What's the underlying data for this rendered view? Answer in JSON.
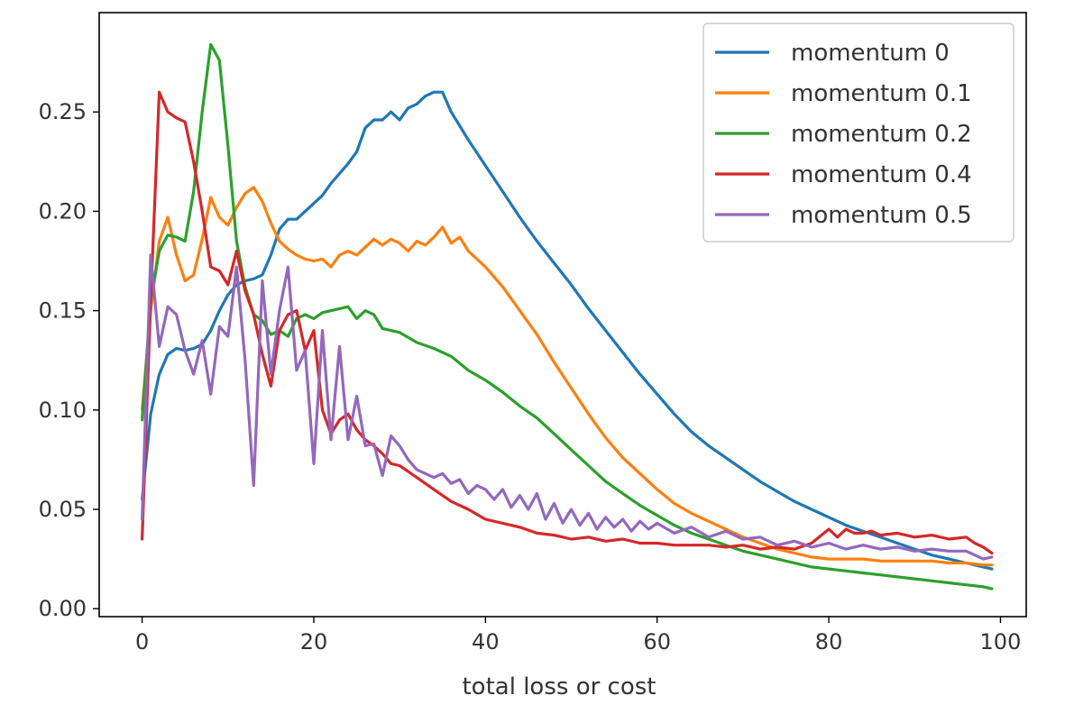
{
  "chart_data": {
    "type": "line",
    "title": "",
    "xlabel": "total loss or cost",
    "ylabel": "",
    "xlim": [
      -5,
      103
    ],
    "ylim": [
      -0.004,
      0.3
    ],
    "xticks": [
      0,
      20,
      40,
      60,
      80,
      100
    ],
    "xtick_labels": [
      "0",
      "20",
      "40",
      "60",
      "80",
      "100"
    ],
    "yticks": [
      0.0,
      0.05,
      0.1,
      0.15,
      0.2,
      0.25
    ],
    "ytick_labels": [
      "0.00",
      "0.05",
      "0.10",
      "0.15",
      "0.20",
      "0.25"
    ],
    "grid": false,
    "legend_position": "top-right",
    "series": [
      {
        "name": "momentum 0",
        "color": "#1f77b4",
        "x": [
          0,
          1,
          2,
          3,
          4,
          5,
          6,
          7,
          8,
          9,
          10,
          11,
          12,
          13,
          14,
          15,
          16,
          17,
          18,
          19,
          20,
          21,
          22,
          23,
          24,
          25,
          26,
          27,
          28,
          29,
          30,
          31,
          32,
          33,
          34,
          35,
          36,
          38,
          40,
          42,
          44,
          46,
          48,
          50,
          52,
          54,
          56,
          58,
          60,
          62,
          64,
          66,
          68,
          70,
          72,
          74,
          76,
          78,
          80,
          82,
          84,
          86,
          88,
          90,
          92,
          94,
          96,
          98,
          99
        ],
        "y": [
          0.055,
          0.098,
          0.118,
          0.128,
          0.131,
          0.13,
          0.131,
          0.133,
          0.14,
          0.15,
          0.158,
          0.163,
          0.165,
          0.166,
          0.168,
          0.178,
          0.191,
          0.196,
          0.196,
          0.2,
          0.204,
          0.208,
          0.214,
          0.219,
          0.224,
          0.23,
          0.242,
          0.246,
          0.246,
          0.25,
          0.246,
          0.252,
          0.254,
          0.258,
          0.26,
          0.26,
          0.25,
          0.236,
          0.223,
          0.21,
          0.197,
          0.185,
          0.174,
          0.163,
          0.151,
          0.14,
          0.129,
          0.118,
          0.108,
          0.098,
          0.089,
          0.082,
          0.076,
          0.07,
          0.064,
          0.059,
          0.054,
          0.05,
          0.046,
          0.042,
          0.039,
          0.036,
          0.033,
          0.03,
          0.027,
          0.025,
          0.023,
          0.021,
          0.02
        ]
      },
      {
        "name": "momentum 0.1",
        "color": "#ff7f0e",
        "x": [
          0,
          1,
          2,
          3,
          4,
          5,
          6,
          7,
          8,
          9,
          10,
          11,
          12,
          13,
          14,
          15,
          16,
          17,
          18,
          19,
          20,
          21,
          22,
          23,
          24,
          25,
          26,
          27,
          28,
          29,
          30,
          31,
          32,
          33,
          34,
          35,
          36,
          37,
          38,
          40,
          42,
          44,
          46,
          48,
          50,
          52,
          54,
          56,
          58,
          60,
          62,
          64,
          66,
          68,
          70,
          72,
          74,
          76,
          78,
          80,
          82,
          84,
          86,
          88,
          90,
          92,
          94,
          96,
          98,
          99
        ],
        "y": [
          0.1,
          0.15,
          0.185,
          0.197,
          0.178,
          0.165,
          0.168,
          0.186,
          0.207,
          0.197,
          0.193,
          0.202,
          0.209,
          0.212,
          0.205,
          0.194,
          0.185,
          0.181,
          0.178,
          0.176,
          0.175,
          0.176,
          0.172,
          0.178,
          0.18,
          0.178,
          0.182,
          0.186,
          0.183,
          0.186,
          0.184,
          0.18,
          0.185,
          0.183,
          0.187,
          0.192,
          0.184,
          0.187,
          0.18,
          0.172,
          0.162,
          0.15,
          0.138,
          0.124,
          0.111,
          0.098,
          0.086,
          0.076,
          0.068,
          0.06,
          0.053,
          0.048,
          0.044,
          0.04,
          0.036,
          0.033,
          0.03,
          0.028,
          0.026,
          0.025,
          0.025,
          0.025,
          0.024,
          0.024,
          0.024,
          0.024,
          0.023,
          0.023,
          0.022,
          0.022
        ]
      },
      {
        "name": "momentum 0.2",
        "color": "#2ca02c",
        "x": [
          0,
          1,
          2,
          3,
          4,
          5,
          6,
          7,
          8,
          9,
          10,
          11,
          12,
          13,
          14,
          15,
          16,
          17,
          18,
          19,
          20,
          21,
          22,
          23,
          24,
          25,
          26,
          27,
          28,
          29,
          30,
          32,
          34,
          36,
          38,
          40,
          42,
          44,
          46,
          48,
          50,
          52,
          54,
          56,
          58,
          60,
          62,
          64,
          66,
          68,
          70,
          72,
          74,
          76,
          78,
          80,
          82,
          84,
          86,
          88,
          90,
          92,
          94,
          96,
          98,
          99
        ],
        "y": [
          0.095,
          0.155,
          0.18,
          0.188,
          0.187,
          0.185,
          0.21,
          0.25,
          0.284,
          0.276,
          0.233,
          0.185,
          0.162,
          0.148,
          0.145,
          0.138,
          0.14,
          0.137,
          0.146,
          0.148,
          0.146,
          0.149,
          0.15,
          0.151,
          0.152,
          0.146,
          0.15,
          0.148,
          0.141,
          0.14,
          0.139,
          0.134,
          0.131,
          0.127,
          0.12,
          0.115,
          0.109,
          0.102,
          0.096,
          0.088,
          0.08,
          0.072,
          0.064,
          0.058,
          0.052,
          0.047,
          0.042,
          0.038,
          0.035,
          0.032,
          0.029,
          0.027,
          0.025,
          0.023,
          0.021,
          0.02,
          0.019,
          0.018,
          0.017,
          0.016,
          0.015,
          0.014,
          0.013,
          0.012,
          0.011,
          0.01
        ]
      },
      {
        "name": "momentum 0.4",
        "color": "#d62728",
        "x": [
          0,
          1,
          2,
          3,
          4,
          5,
          6,
          7,
          8,
          9,
          10,
          11,
          12,
          13,
          14,
          15,
          16,
          17,
          18,
          19,
          20,
          21,
          22,
          23,
          24,
          25,
          26,
          27,
          28,
          29,
          30,
          31,
          32,
          34,
          36,
          38,
          40,
          42,
          44,
          46,
          48,
          50,
          52,
          54,
          56,
          58,
          60,
          62,
          64,
          66,
          68,
          70,
          72,
          74,
          76,
          78,
          80,
          81,
          82,
          83,
          84,
          85,
          86,
          88,
          90,
          92,
          94,
          96,
          97,
          98,
          99
        ],
        "y": [
          0.035,
          0.155,
          0.26,
          0.25,
          0.247,
          0.245,
          0.225,
          0.2,
          0.172,
          0.17,
          0.163,
          0.18,
          0.16,
          0.148,
          0.128,
          0.112,
          0.14,
          0.148,
          0.15,
          0.13,
          0.14,
          0.1,
          0.088,
          0.095,
          0.098,
          0.09,
          0.085,
          0.082,
          0.078,
          0.073,
          0.072,
          0.069,
          0.066,
          0.06,
          0.054,
          0.05,
          0.045,
          0.043,
          0.041,
          0.038,
          0.037,
          0.035,
          0.036,
          0.034,
          0.035,
          0.033,
          0.033,
          0.032,
          0.032,
          0.032,
          0.031,
          0.032,
          0.03,
          0.031,
          0.03,
          0.033,
          0.04,
          0.036,
          0.04,
          0.038,
          0.038,
          0.039,
          0.037,
          0.038,
          0.036,
          0.037,
          0.035,
          0.036,
          0.033,
          0.031,
          0.028
        ]
      },
      {
        "name": "momentum 0.5",
        "color": "#9467bd",
        "x": [
          0,
          1,
          2,
          3,
          4,
          5,
          6,
          7,
          8,
          9,
          10,
          11,
          12,
          13,
          14,
          15,
          16,
          17,
          18,
          19,
          20,
          21,
          22,
          23,
          24,
          25,
          26,
          27,
          28,
          29,
          30,
          31,
          32,
          33,
          34,
          35,
          36,
          37,
          38,
          39,
          40,
          41,
          42,
          43,
          44,
          45,
          46,
          47,
          48,
          49,
          50,
          51,
          52,
          53,
          54,
          55,
          56,
          57,
          58,
          59,
          60,
          62,
          64,
          66,
          68,
          70,
          72,
          74,
          76,
          78,
          80,
          82,
          84,
          86,
          88,
          90,
          92,
          94,
          96,
          98,
          99
        ],
        "y": [
          0.045,
          0.178,
          0.132,
          0.152,
          0.148,
          0.13,
          0.118,
          0.135,
          0.108,
          0.142,
          0.137,
          0.172,
          0.125,
          0.062,
          0.165,
          0.118,
          0.15,
          0.172,
          0.12,
          0.13,
          0.073,
          0.14,
          0.085,
          0.132,
          0.085,
          0.107,
          0.082,
          0.083,
          0.067,
          0.087,
          0.082,
          0.075,
          0.07,
          0.068,
          0.066,
          0.068,
          0.063,
          0.065,
          0.058,
          0.062,
          0.06,
          0.055,
          0.06,
          0.051,
          0.057,
          0.05,
          0.058,
          0.045,
          0.053,
          0.043,
          0.05,
          0.042,
          0.048,
          0.04,
          0.046,
          0.041,
          0.045,
          0.039,
          0.044,
          0.04,
          0.043,
          0.038,
          0.041,
          0.036,
          0.039,
          0.035,
          0.036,
          0.032,
          0.034,
          0.031,
          0.033,
          0.03,
          0.032,
          0.03,
          0.031,
          0.029,
          0.03,
          0.029,
          0.029,
          0.025,
          0.026
        ]
      }
    ]
  }
}
